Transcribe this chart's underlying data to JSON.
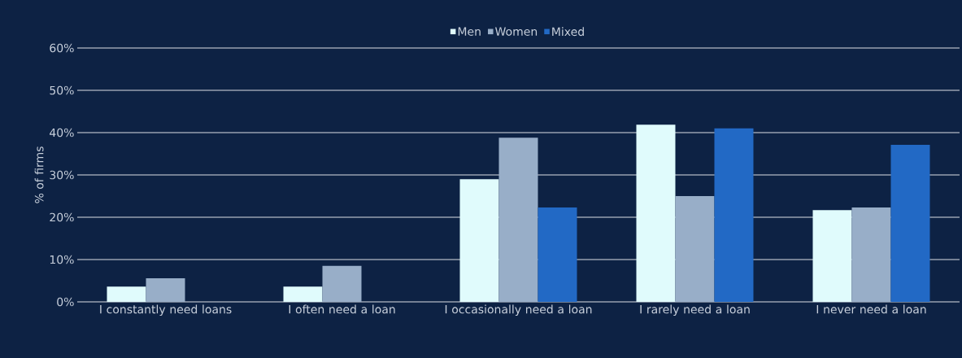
{
  "chart_data": {
    "type": "bar",
    "ylabel": "% of firms",
    "categories": [
      "I constantly need loans",
      "I often need a loan",
      "I occasionally need a loan",
      "I rarely need a loan",
      "I never need a loan"
    ],
    "series": [
      {
        "name": "Men",
        "color": "#e0fbfc",
        "values": [
          3.6,
          3.6,
          29,
          41.9,
          21.7
        ]
      },
      {
        "name": "Women",
        "color": "#98aec8",
        "values": [
          5.6,
          8.5,
          38.8,
          25,
          22.3
        ]
      },
      {
        "name": "Mixed",
        "color": "#2269c5",
        "values": [
          0,
          0,
          22.3,
          41,
          37.1
        ]
      }
    ],
    "ylim": [
      0,
      60
    ],
    "yticks": [
      {
        "value": 0,
        "label": "0%"
      },
      {
        "value": 10,
        "label": "10%"
      },
      {
        "value": 20,
        "label": "20%"
      },
      {
        "value": 30,
        "label": "30%"
      },
      {
        "value": 40,
        "label": "40%"
      },
      {
        "value": 50,
        "label": "50%"
      },
      {
        "value": 60,
        "label": "60%"
      }
    ],
    "grid": "y",
    "legend": "top"
  }
}
